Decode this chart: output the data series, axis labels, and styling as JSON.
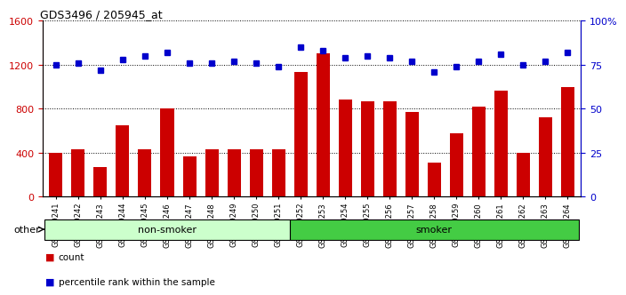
{
  "title": "GDS3496 / 205945_at",
  "samples": [
    "GSM219241",
    "GSM219242",
    "GSM219243",
    "GSM219244",
    "GSM219245",
    "GSM219246",
    "GSM219247",
    "GSM219248",
    "GSM219249",
    "GSM219250",
    "GSM219251",
    "GSM219252",
    "GSM219253",
    "GSM219254",
    "GSM219255",
    "GSM219256",
    "GSM219257",
    "GSM219258",
    "GSM219259",
    "GSM219260",
    "GSM219261",
    "GSM219262",
    "GSM219263",
    "GSM219264"
  ],
  "counts": [
    400,
    430,
    270,
    650,
    430,
    800,
    370,
    430,
    430,
    430,
    430,
    1130,
    1300,
    880,
    870,
    870,
    770,
    310,
    580,
    820,
    960,
    400,
    720,
    1000
  ],
  "percentile_ranks": [
    75,
    76,
    72,
    78,
    80,
    82,
    76,
    76,
    77,
    76,
    74,
    85,
    83,
    79,
    80,
    79,
    77,
    71,
    74,
    77,
    81,
    75,
    77,
    82
  ],
  "groups": [
    "non-smoker",
    "non-smoker",
    "non-smoker",
    "non-smoker",
    "non-smoker",
    "non-smoker",
    "non-smoker",
    "non-smoker",
    "non-smoker",
    "non-smoker",
    "non-smoker",
    "smoker",
    "smoker",
    "smoker",
    "smoker",
    "smoker",
    "smoker",
    "smoker",
    "smoker",
    "smoker",
    "smoker",
    "smoker",
    "smoker",
    "smoker"
  ],
  "ylim_left": [
    0,
    1600
  ],
  "ylim_right": [
    0,
    100
  ],
  "yticks_left": [
    0,
    400,
    800,
    1200,
    1600
  ],
  "yticks_right": [
    0,
    25,
    50,
    75,
    100
  ],
  "ytick_right_labels": [
    "0",
    "25",
    "50",
    "75",
    "100%"
  ],
  "bar_color": "#cc0000",
  "dot_color": "#0000cc",
  "non_smoker_color": "#ccffcc",
  "smoker_color": "#44cc44",
  "background_color": "#ffffff",
  "axis_left_color": "#cc0000",
  "axis_right_color": "#0000cc",
  "legend_count_color": "#cc0000",
  "legend_pct_color": "#0000cc"
}
